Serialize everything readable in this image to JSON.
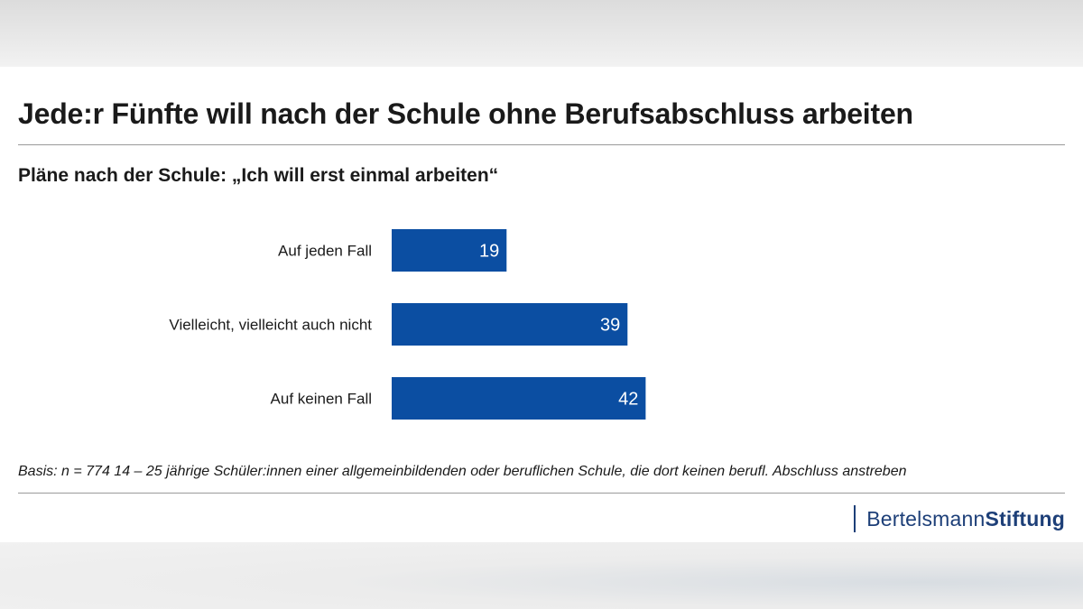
{
  "header": {
    "title": "Jede:r Fünfte will nach der Schule ohne Berufsabschluss arbeiten",
    "subtitle": "Pläne nach der Schule: „Ich will erst einmal arbeiten“"
  },
  "footer": {
    "note": "Basis: n = 774 14 – 25 jährige Schüler:innen einer allgemeinbildenden oder beruflichen Schule, die dort keinen berufl. Abschluss anstreben",
    "logo_light": "Bertelsmann",
    "logo_bold": "Stiftung"
  },
  "colors": {
    "bar": "#0b4ea2",
    "bar_label": "#ffffff",
    "brand": "#1d3f78"
  },
  "chart_data": {
    "type": "bar",
    "orientation": "horizontal",
    "categories": [
      "Auf jeden Fall",
      "Vielleicht, vielleicht auch nicht",
      "Auf keinen Fall"
    ],
    "values": [
      19,
      39,
      42
    ],
    "xlim": [
      0,
      100
    ],
    "grid": false,
    "legend": "none"
  }
}
